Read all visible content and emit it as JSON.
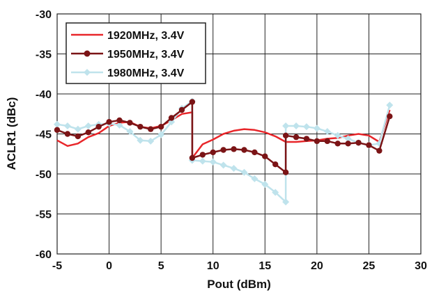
{
  "chart_data": {
    "type": "line",
    "xlabel": "Pout (dBm)",
    "ylabel": "ACLR1 (dBc)",
    "xlim": [
      -5,
      30
    ],
    "ylim": [
      -60,
      -30
    ],
    "x_ticks": [
      -5,
      0,
      5,
      10,
      15,
      20,
      25,
      30
    ],
    "y_ticks": [
      -30,
      -35,
      -40,
      -45,
      -50,
      -55,
      -60
    ],
    "grid": true,
    "legend_position": "top-left",
    "series": [
      {
        "name": "1920MHz, 3.4V",
        "color": "#e8262a",
        "marker": "none",
        "points": [
          [
            -5,
            -45.8
          ],
          [
            -4,
            -46.5
          ],
          [
            -3,
            -46.2
          ],
          [
            -2,
            -45.4
          ],
          [
            -1,
            -44.9
          ],
          [
            0,
            -44.0
          ],
          [
            1,
            -43.6
          ],
          [
            2,
            -43.5
          ],
          [
            3,
            -44.1
          ],
          [
            4,
            -44.3
          ],
          [
            5,
            -44.0
          ],
          [
            6,
            -43.3
          ],
          [
            7,
            -42.5
          ],
          [
            8,
            -42.3
          ],
          [
            8,
            -48.0
          ],
          [
            9,
            -46.3
          ],
          [
            10,
            -45.7
          ],
          [
            11,
            -45.0
          ],
          [
            12,
            -44.6
          ],
          [
            13,
            -44.4
          ],
          [
            14,
            -44.5
          ],
          [
            15,
            -44.8
          ],
          [
            16,
            -45.3
          ],
          [
            17,
            -46.0
          ],
          [
            18,
            -46.0
          ],
          [
            19,
            -45.9
          ],
          [
            20,
            -45.8
          ],
          [
            21,
            -45.6
          ],
          [
            22,
            -45.5
          ],
          [
            23,
            -45.2
          ],
          [
            24,
            -45.0
          ],
          [
            25,
            -45.2
          ],
          [
            26,
            -46.0
          ],
          [
            27,
            -42.0
          ]
        ]
      },
      {
        "name": "1950MHz, 3.4V",
        "color": "#7b1416",
        "marker": "circle",
        "points": [
          [
            -5,
            -44.5
          ],
          [
            -4,
            -45.0
          ],
          [
            -3,
            -45.3
          ],
          [
            -2,
            -44.8
          ],
          [
            -1,
            -44.1
          ],
          [
            0,
            -43.5
          ],
          [
            1,
            -43.3
          ],
          [
            2,
            -43.6
          ],
          [
            3,
            -44.1
          ],
          [
            4,
            -44.4
          ],
          [
            5,
            -44.1
          ],
          [
            6,
            -43.0
          ],
          [
            7,
            -42.0
          ],
          [
            8,
            -41.0
          ],
          [
            8,
            -48.0
          ],
          [
            9,
            -47.6
          ],
          [
            10,
            -47.3
          ],
          [
            11,
            -47.0
          ],
          [
            12,
            -46.9
          ],
          [
            13,
            -47.0
          ],
          [
            14,
            -47.3
          ],
          [
            15,
            -47.8
          ],
          [
            16,
            -48.8
          ],
          [
            17,
            -49.8
          ],
          [
            17,
            -45.2
          ],
          [
            18,
            -45.4
          ],
          [
            19,
            -45.6
          ],
          [
            20,
            -45.9
          ],
          [
            21,
            -45.9
          ],
          [
            22,
            -46.2
          ],
          [
            23,
            -46.2
          ],
          [
            24,
            -46.1
          ],
          [
            25,
            -46.4
          ],
          [
            26,
            -47.1
          ],
          [
            27,
            -42.8
          ]
        ]
      },
      {
        "name": "1980MHz, 3.4V",
        "color": "#bfe3ec",
        "marker": "diamond",
        "points": [
          [
            -5,
            -43.8
          ],
          [
            -4,
            -44.0
          ],
          [
            -3,
            -44.4
          ],
          [
            -2,
            -44.0
          ],
          [
            -1,
            -43.8
          ],
          [
            0,
            -43.7
          ],
          [
            1,
            -43.9
          ],
          [
            2,
            -44.7
          ],
          [
            3,
            -45.8
          ],
          [
            4,
            -45.9
          ],
          [
            5,
            -45.1
          ],
          [
            6,
            -43.5
          ],
          [
            7,
            -41.8
          ],
          [
            8,
            -40.9
          ],
          [
            8,
            -48.3
          ],
          [
            9,
            -48.4
          ],
          [
            10,
            -48.5
          ],
          [
            11,
            -48.9
          ],
          [
            12,
            -49.3
          ],
          [
            13,
            -49.8
          ],
          [
            14,
            -50.6
          ],
          [
            15,
            -51.3
          ],
          [
            16,
            -52.3
          ],
          [
            17,
            -53.5
          ],
          [
            17,
            -44.0
          ],
          [
            18,
            -44.0
          ],
          [
            19,
            -44.1
          ],
          [
            20,
            -44.3
          ],
          [
            21,
            -44.7
          ],
          [
            22,
            -45.2
          ],
          [
            23,
            -45.6
          ],
          [
            24,
            -46.1
          ],
          [
            25,
            -46.4
          ],
          [
            26,
            -46.2
          ],
          [
            27,
            -41.4
          ]
        ]
      }
    ]
  }
}
